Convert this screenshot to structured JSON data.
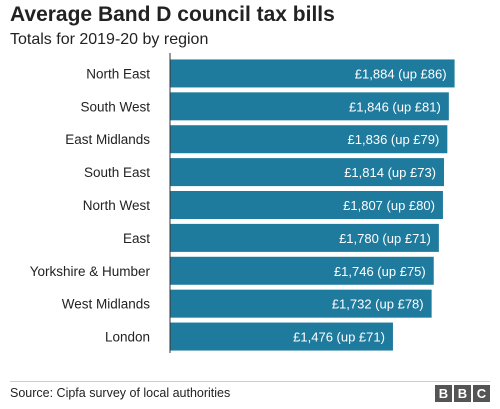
{
  "header": {
    "title": "Average Band D council tax bills",
    "subtitle": "Totals for 2019-20 by region"
  },
  "footer": {
    "source": "Source: Cipfa survey of local authorities",
    "logo_letters": [
      "B",
      "B",
      "C"
    ]
  },
  "colors": {
    "bar": "#1f7b9e",
    "axis": "#333333"
  },
  "chart_data": {
    "type": "bar",
    "orientation": "horizontal",
    "title": "Average Band D council tax bills",
    "subtitle": "Totals for 2019-20 by region",
    "categories": [
      "North East",
      "South West",
      "East Midlands",
      "South East",
      "North West",
      "East",
      "Yorkshire & Humber",
      "West Midlands",
      "London"
    ],
    "values": [
      1884,
      1846,
      1836,
      1814,
      1807,
      1780,
      1746,
      1732,
      1476
    ],
    "labels": [
      "£1,884 (up £86)",
      "£1,846 (up £81)",
      "£1,836 (up £79)",
      "£1,814 (up £73)",
      "£1,807 (up £80)",
      "£1,780 (up £71)",
      "£1,746 (up £75)",
      "£1,732 (up £78)",
      "£1,476 (up £71)"
    ],
    "xlim": [
      0,
      1900
    ],
    "grid": false,
    "legend": "none"
  }
}
